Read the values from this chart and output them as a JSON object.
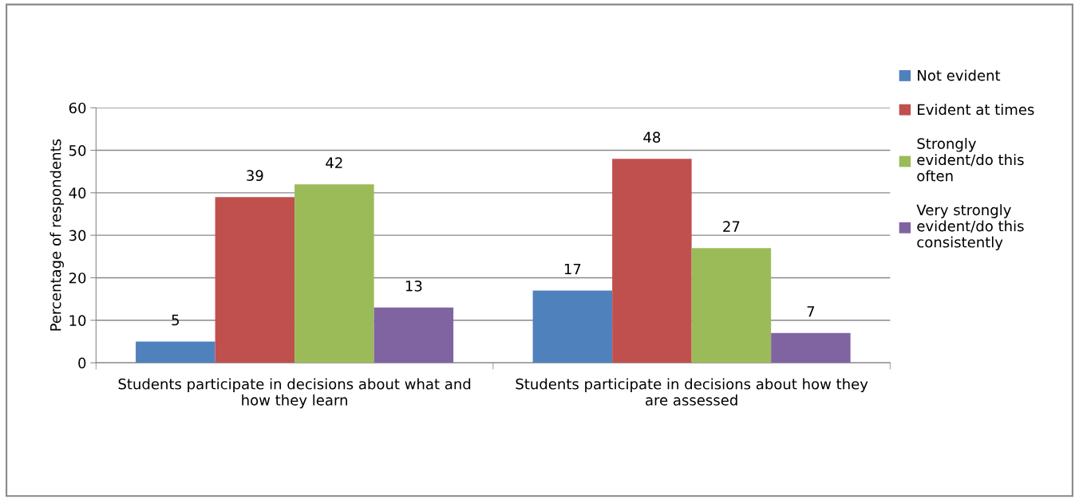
{
  "chart_data": {
    "type": "bar",
    "ylabel": "Percentage of respondents",
    "categories": [
      "Students participate in decisions about what and how they learn",
      "Students participate in decisions about how they are assessed"
    ],
    "series": [
      {
        "name": "Not evident",
        "color": "#4f81bd",
        "values": [
          5,
          17
        ]
      },
      {
        "name": "Evident at times",
        "color": "#c0504d",
        "values": [
          39,
          48
        ]
      },
      {
        "name": "Strongly evident/do this often",
        "color": "#9bbb59",
        "values": [
          42,
          27
        ]
      },
      {
        "name": "Very strongly evident/do this consistently",
        "color": "#8064a2",
        "values": [
          13,
          7
        ]
      }
    ],
    "ylim": [
      0,
      60
    ],
    "yticks": [
      0,
      10,
      20,
      30,
      40,
      50,
      60
    ],
    "grid": "y",
    "legend": "right",
    "data_labels": true
  }
}
